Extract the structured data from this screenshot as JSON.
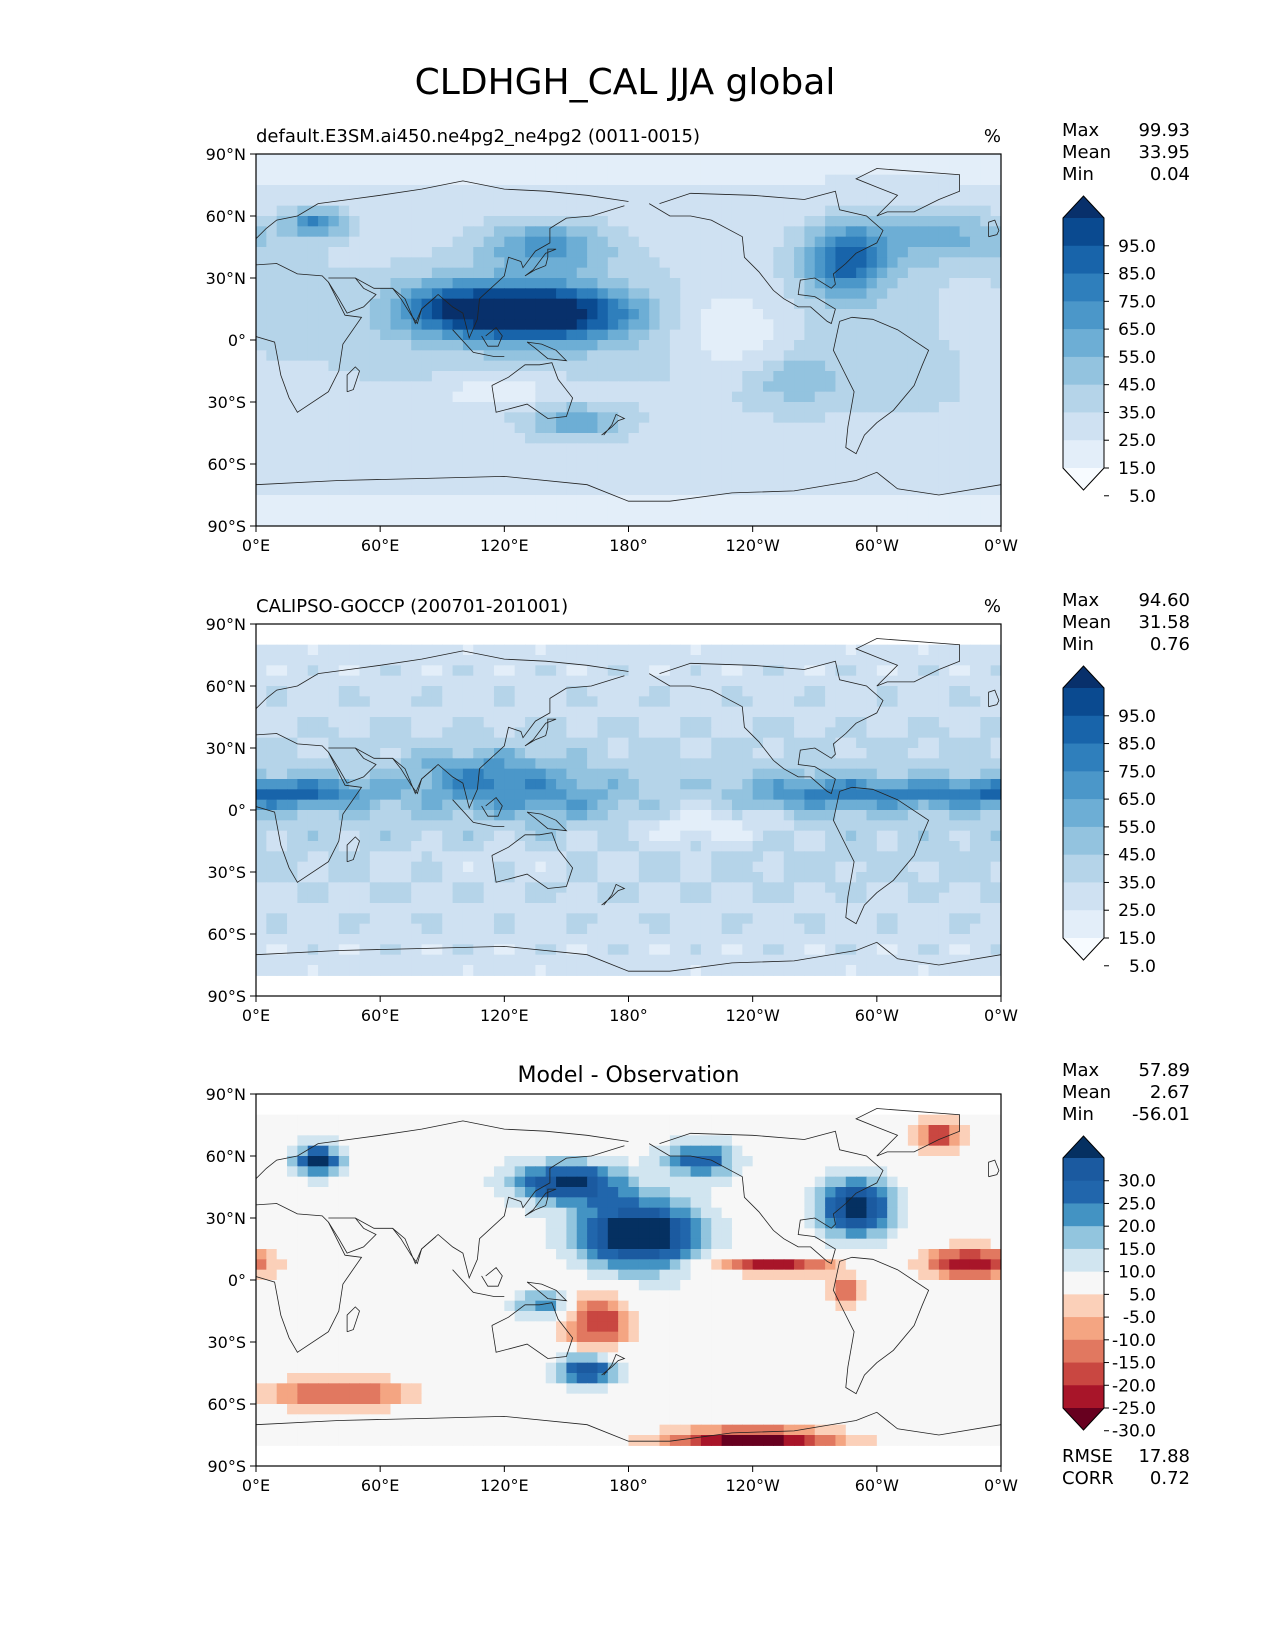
{
  "figure": {
    "title": "CLDHGH_CAL JJA global"
  },
  "axes": {
    "lat_ticks": [
      "90°N",
      "60°N",
      "30°N",
      "0°",
      "30°S",
      "60°S",
      "90°S"
    ],
    "lon_ticks": [
      "0°E",
      "60°E",
      "120°E",
      "180°",
      "120°W",
      "60°W",
      "0°W"
    ]
  },
  "panels": [
    {
      "title": "default.E3SM.ai450.ne4pg2_ne4pg2 (0011-0015)",
      "units": "%",
      "stats": [
        {
          "label": "Max",
          "value": "99.93"
        },
        {
          "label": "Mean",
          "value": "33.95"
        },
        {
          "label": "Min",
          "value": "0.04"
        }
      ],
      "colorbar": {
        "labels": [
          "95.0",
          "85.0",
          "75.0",
          "65.0",
          "55.0",
          "45.0",
          "35.0",
          "25.0",
          "15.0",
          "5.0"
        ]
      }
    },
    {
      "title": "CALIPSO-GOCCP (200701-201001)",
      "units": "%",
      "stats": [
        {
          "label": "Max",
          "value": "94.60"
        },
        {
          "label": "Mean",
          "value": "31.58"
        },
        {
          "label": "Min",
          "value": "0.76"
        }
      ],
      "colorbar": {
        "labels": [
          "95.0",
          "85.0",
          "75.0",
          "65.0",
          "55.0",
          "45.0",
          "35.0",
          "25.0",
          "15.0",
          "5.0"
        ]
      }
    },
    {
      "title": "Model - Observation",
      "units": "",
      "stats": [
        {
          "label": "Max",
          "value": "57.89"
        },
        {
          "label": "Mean",
          "value": "2.67"
        },
        {
          "label": "Min",
          "value": "-56.01"
        }
      ],
      "colorbar": {
        "labels": [
          "30.0",
          "25.0",
          "20.0",
          "15.0",
          "10.0",
          "5.0",
          "-5.0",
          "-10.0",
          "-15.0",
          "-20.0",
          "-25.0",
          "-30.0"
        ]
      },
      "metrics": [
        {
          "label": "RMSE",
          "value": "17.88"
        },
        {
          "label": "CORR",
          "value": "0.72"
        }
      ]
    }
  ],
  "colors": {
    "blues": [
      "#f7fbff",
      "#e3eef9",
      "#cfe1f2",
      "#b5d4e9",
      "#93c3df",
      "#6daed5",
      "#4b97c9",
      "#2f7fbc",
      "#1864aa",
      "#0a4a90",
      "#08306b"
    ],
    "diverging": [
      "#67001f",
      "#a81529",
      "#c94741",
      "#e17860",
      "#f4a582",
      "#fbd0b9",
      "#f7f7f7",
      "#d1e5f0",
      "#92c5de",
      "#4393c3",
      "#2166ac",
      "#1b5aa0",
      "#053061"
    ]
  }
}
